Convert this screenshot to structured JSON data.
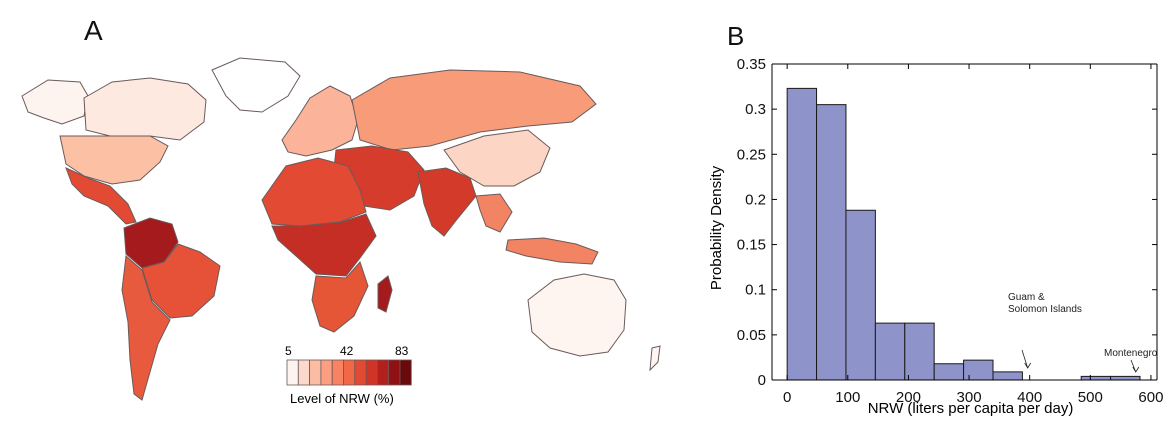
{
  "panel_a": {
    "letter": "A",
    "legend": {
      "tick_labels": [
        "5",
        "42",
        "83"
      ],
      "title": "Level of NRW (%)",
      "colors": [
        "#fdf3ef",
        "#fcd9cb",
        "#fcbba3",
        "#fc9f80",
        "#f88363",
        "#f26846",
        "#e24a33",
        "#cf3427",
        "#b31f1d",
        "#8f1114",
        "#6b0a0d"
      ]
    },
    "map_colors": {
      "north_america_canada": "#fde9df",
      "alaska": "#fdf3ef",
      "greenland": "#ffffff",
      "usa": "#fcc1a5",
      "mexico_central": "#e24a33",
      "south_america_north": "#a51b1d",
      "brazil": "#e55238",
      "south_america_south": "#e85a3d",
      "europe": "#fbb39a",
      "russia": "#f89b78",
      "middle_east": "#d63c2b",
      "africa_north": "#e24a33",
      "africa_central": "#c42e24",
      "africa_south": "#e45636",
      "india": "#d33a2a",
      "china": "#fdd5c4",
      "southeast_asia": "#f28463",
      "madagascar": "#a51b1d",
      "australia": "#fff5f0"
    }
  },
  "panel_b": {
    "letter": "B",
    "annotations": [
      {
        "text_lines": [
          "Guam &",
          "Solomon Islands"
        ],
        "target_x": 400
      },
      {
        "text_lines": [
          "Montenegro"
        ],
        "target_x": 575
      }
    ]
  },
  "chart_data": {
    "type": "bar",
    "title": "",
    "xlabel": "NRW (liters per capita per day)",
    "ylabel": "Probability Density",
    "xlim": [
      -25,
      610
    ],
    "ylim": [
      0,
      0.35
    ],
    "x_ticks": [
      0,
      100,
      200,
      300,
      400,
      500,
      600
    ],
    "y_ticks": [
      0,
      0.05,
      0.1,
      0.15,
      0.2,
      0.25,
      0.3,
      0.35
    ],
    "y_tick_labels": [
      "0",
      "0.05",
      "0.1",
      "0.15",
      "0.2",
      "0.25",
      "0.3",
      "0.35"
    ],
    "bin_width": 48.5,
    "bin_starts": [
      0,
      48.5,
      97,
      145.5,
      194,
      242.5,
      291,
      339.5,
      388,
      436.5,
      485,
      533.5
    ],
    "values": [
      0.323,
      0.305,
      0.188,
      0.063,
      0.063,
      0.018,
      0.022,
      0.009,
      0.0,
      0.0,
      0.004,
      0.004
    ],
    "bar_color": "#8e93c9",
    "grid": false
  }
}
